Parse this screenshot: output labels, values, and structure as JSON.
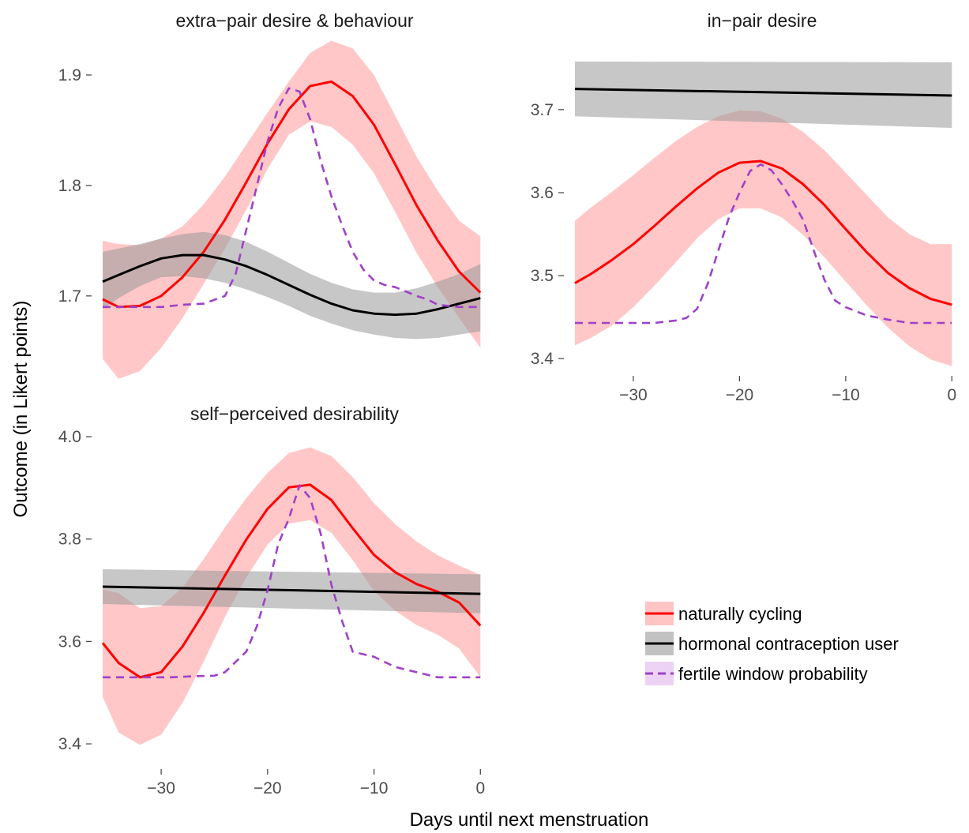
{
  "axes": {
    "xlabel": "Days until next menstruation",
    "ylabel": "Outcome (in Likert points)"
  },
  "legend": {
    "placement": "bottom-right",
    "items": [
      {
        "key": "natural",
        "label": "naturally cycling",
        "line_color": "#ff0000",
        "fill_color": "#ffc4c4",
        "dash": "solid"
      },
      {
        "key": "hormonal",
        "label": "hormonal contraception user",
        "line_color": "#000000",
        "fill_color": "#c2c2c2",
        "dash": "solid"
      },
      {
        "key": "fertile",
        "label": "fertile window probability",
        "line_color": "#a040c8",
        "fill_color": "#ecd2f4",
        "dash": "dashed"
      }
    ]
  },
  "colors": {
    "natural_line": "#ff0000",
    "natural_band": "#ff9999",
    "hormonal_line": "#000000",
    "hormonal_band": "#999999",
    "fertile_line": "#a040c8"
  },
  "chart_data": [
    {
      "type": "line",
      "title": "extra−pair desire & behaviour",
      "xlim": [
        -35.5,
        0.2
      ],
      "ylim": [
        1.632,
        1.925
      ],
      "xticks": [],
      "xtick_labels": [],
      "yticks": [
        1.7,
        1.8,
        1.9
      ],
      "ytick_labels": [
        "1.7",
        "1.8",
        "1.9"
      ],
      "series": [
        {
          "key": "natural",
          "x": [
            -35.5,
            -34,
            -32,
            -30,
            -28,
            -26,
            -24,
            -22,
            -20,
            -18,
            -16,
            -14,
            -12,
            -10,
            -8,
            -6,
            -4,
            -2,
            0
          ],
          "y": [
            1.697,
            1.69,
            1.691,
            1.7,
            1.717,
            1.74,
            1.769,
            1.803,
            1.838,
            1.869,
            1.89,
            1.894,
            1.881,
            1.855,
            1.819,
            1.782,
            1.75,
            1.722,
            1.703
          ],
          "lower": [
            1.643,
            1.625,
            1.632,
            1.653,
            1.68,
            1.711,
            1.743,
            1.778,
            1.815,
            1.846,
            1.858,
            1.853,
            1.837,
            1.811,
            1.776,
            1.739,
            1.708,
            1.68,
            1.653
          ],
          "upper": [
            1.75,
            1.747,
            1.746,
            1.752,
            1.763,
            1.783,
            1.808,
            1.837,
            1.866,
            1.894,
            1.92,
            1.931,
            1.924,
            1.9,
            1.863,
            1.826,
            1.795,
            1.768,
            1.754
          ]
        },
        {
          "key": "hormonal",
          "x": [
            -35.5,
            -34,
            -32,
            -30,
            -28,
            -26,
            -24,
            -22,
            -20,
            -18,
            -16,
            -14,
            -12,
            -10,
            -8,
            -6,
            -4,
            -2,
            0
          ],
          "y": [
            1.713,
            1.719,
            1.727,
            1.734,
            1.737,
            1.737,
            1.733,
            1.727,
            1.719,
            1.71,
            1.701,
            1.693,
            1.687,
            1.684,
            1.683,
            1.684,
            1.688,
            1.693,
            1.698
          ],
          "lower": [
            1.688,
            1.698,
            1.709,
            1.717,
            1.718,
            1.716,
            1.712,
            1.706,
            1.699,
            1.691,
            1.682,
            1.675,
            1.669,
            1.665,
            1.662,
            1.661,
            1.662,
            1.665,
            1.668
          ],
          "upper": [
            1.74,
            1.743,
            1.747,
            1.752,
            1.756,
            1.758,
            1.755,
            1.749,
            1.74,
            1.73,
            1.72,
            1.712,
            1.706,
            1.703,
            1.703,
            1.707,
            1.713,
            1.72,
            1.729
          ]
        },
        {
          "key": "fertile",
          "x": [
            -35.5,
            -34,
            -32,
            -30,
            -28,
            -26,
            -24,
            -23,
            -22,
            -21,
            -20,
            -19,
            -18,
            -17,
            -16,
            -15,
            -14,
            -13,
            -12,
            -11,
            -10,
            -9,
            -8,
            -7,
            -6,
            -5,
            -4,
            -2,
            0
          ],
          "y": [
            1.69,
            1.69,
            1.69,
            1.69,
            1.692,
            1.693,
            1.7,
            1.72,
            1.76,
            1.8,
            1.84,
            1.87,
            1.888,
            1.885,
            1.86,
            1.822,
            1.79,
            1.764,
            1.74,
            1.724,
            1.714,
            1.71,
            1.708,
            1.704,
            1.7,
            1.697,
            1.692,
            1.69,
            1.69
          ]
        }
      ]
    },
    {
      "type": "line",
      "title": "in−pair desire",
      "xlim": [
        -35.5,
        0.2
      ],
      "ylim": [
        3.385,
        3.775
      ],
      "xticks": [
        -30,
        -20,
        -10,
        0
      ],
      "xtick_labels": [
        "−30",
        "−20",
        "−10",
        "0"
      ],
      "yticks": [
        3.4,
        3.5,
        3.6,
        3.7
      ],
      "ytick_labels": [
        "3.4",
        "3.5",
        "3.6",
        "3.7"
      ],
      "series": [
        {
          "key": "natural",
          "x": [
            -35.5,
            -34,
            -32,
            -30,
            -28,
            -26,
            -24,
            -22,
            -20,
            -18,
            -16,
            -14,
            -12,
            -10,
            -8,
            -6,
            -4,
            -2,
            0
          ],
          "y": [
            3.491,
            3.502,
            3.519,
            3.538,
            3.56,
            3.583,
            3.605,
            3.624,
            3.636,
            3.638,
            3.629,
            3.61,
            3.585,
            3.556,
            3.528,
            3.503,
            3.485,
            3.472,
            3.465
          ],
          "lower": [
            3.416,
            3.425,
            3.44,
            3.462,
            3.488,
            3.516,
            3.545,
            3.568,
            3.581,
            3.581,
            3.57,
            3.549,
            3.522,
            3.493,
            3.464,
            3.437,
            3.415,
            3.399,
            3.391
          ],
          "upper": [
            3.566,
            3.582,
            3.601,
            3.621,
            3.642,
            3.662,
            3.679,
            3.692,
            3.699,
            3.698,
            3.689,
            3.673,
            3.651,
            3.624,
            3.597,
            3.57,
            3.55,
            3.538,
            3.538
          ]
        },
        {
          "key": "hormonal",
          "x": [
            -35.5,
            0
          ],
          "y": [
            3.725,
            3.717
          ],
          "lower": [
            3.692,
            3.678
          ],
          "upper": [
            3.758,
            3.757
          ]
        },
        {
          "key": "fertile",
          "x": [
            -35.5,
            -32,
            -30,
            -28,
            -26,
            -25,
            -24,
            -23,
            -22,
            -21,
            -20,
            -19,
            -18,
            -17,
            -16,
            -15,
            -14,
            -13,
            -12,
            -11,
            -10,
            -9,
            -8,
            -6,
            -4,
            -2,
            0
          ],
          "y": [
            3.443,
            3.443,
            3.443,
            3.443,
            3.446,
            3.449,
            3.46,
            3.49,
            3.53,
            3.57,
            3.6,
            3.626,
            3.634,
            3.627,
            3.61,
            3.59,
            3.567,
            3.53,
            3.495,
            3.47,
            3.462,
            3.457,
            3.452,
            3.447,
            3.443,
            3.443,
            3.443
          ]
        }
      ]
    },
    {
      "type": "line",
      "title": "self−perceived desirability",
      "xlim": [
        -35.5,
        0.2
      ],
      "ylim": [
        3.36,
        4.02
      ],
      "xticks": [
        -30,
        -20,
        -10,
        0
      ],
      "xtick_labels": [
        "−30",
        "−20",
        "−10",
        "0"
      ],
      "yticks": [
        3.4,
        3.6,
        3.8,
        4.0
      ],
      "ytick_labels": [
        "3.4",
        "3.6",
        "3.8",
        "4.0"
      ],
      "series": [
        {
          "key": "natural",
          "x": [
            -35.5,
            -34,
            -32,
            -30,
            -28,
            -26,
            -24,
            -22,
            -20,
            -18,
            -16,
            -14,
            -12,
            -10,
            -8,
            -6,
            -4,
            -2,
            0
          ],
          "y": [
            3.597,
            3.558,
            3.53,
            3.54,
            3.59,
            3.656,
            3.729,
            3.799,
            3.859,
            3.901,
            3.906,
            3.876,
            3.821,
            3.769,
            3.735,
            3.712,
            3.697,
            3.676,
            3.631
          ],
          "lower": [
            3.492,
            3.422,
            3.398,
            3.418,
            3.48,
            3.561,
            3.648,
            3.725,
            3.789,
            3.83,
            3.837,
            3.812,
            3.759,
            3.698,
            3.66,
            3.632,
            3.613,
            3.586,
            3.53
          ],
          "upper": [
            3.702,
            3.694,
            3.665,
            3.669,
            3.705,
            3.761,
            3.823,
            3.88,
            3.929,
            3.968,
            3.979,
            3.962,
            3.921,
            3.87,
            3.829,
            3.795,
            3.768,
            3.748,
            3.73
          ]
        },
        {
          "key": "hormonal",
          "x": [
            -35.5,
            0
          ],
          "y": [
            3.707,
            3.693
          ],
          "lower": [
            3.673,
            3.655
          ],
          "upper": [
            3.741,
            3.731
          ]
        },
        {
          "key": "fertile",
          "x": [
            -35.5,
            -33,
            -31,
            -29,
            -27,
            -25,
            -24,
            -23,
            -22,
            -21,
            -20,
            -19,
            -18,
            -17,
            -16,
            -15,
            -14,
            -13,
            -12,
            -11,
            -10,
            -9,
            -8,
            -6,
            -4,
            -2,
            0
          ],
          "y": [
            3.53,
            3.53,
            3.53,
            3.53,
            3.532,
            3.533,
            3.54,
            3.56,
            3.58,
            3.63,
            3.7,
            3.79,
            3.84,
            3.905,
            3.88,
            3.81,
            3.71,
            3.64,
            3.58,
            3.575,
            3.57,
            3.56,
            3.55,
            3.54,
            3.53,
            3.53,
            3.53
          ]
        }
      ]
    }
  ]
}
